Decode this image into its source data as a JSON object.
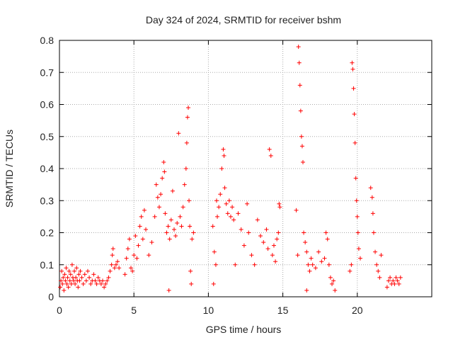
{
  "chart_data": {
    "type": "scatter",
    "title": "Day 324 of 2024, SRMTID for receiver bshm",
    "xlabel": "GPS time / hours",
    "ylabel": "SRMTID / TECUs",
    "xlim": [
      0,
      25
    ],
    "ylim": [
      0,
      0.8
    ],
    "xticks": [
      0,
      5,
      10,
      15,
      20
    ],
    "xtick_labels": [
      "0",
      "5",
      "10",
      "15",
      "20"
    ],
    "yticks": [
      0,
      0.1,
      0.2,
      0.3,
      0.4,
      0.5,
      0.6,
      0.7,
      0.8
    ],
    "ytick_labels": [
      "0",
      "0.1",
      "0.2",
      "0.3",
      "0.4",
      "0.5",
      "0.6",
      "0.7",
      "0.8"
    ],
    "grid": true,
    "marker": "+",
    "color": "#ff0000",
    "series": [
      {
        "name": "SRMTID",
        "points": [
          [
            0.05,
            0.03
          ],
          [
            0.1,
            0.05
          ],
          [
            0.15,
            0.08
          ],
          [
            0.2,
            0.04
          ],
          [
            0.25,
            0.06
          ],
          [
            0.3,
            0.02
          ],
          [
            0.35,
            0.07
          ],
          [
            0.4,
            0.05
          ],
          [
            0.45,
            0.09
          ],
          [
            0.5,
            0.04
          ],
          [
            0.55,
            0.06
          ],
          [
            0.6,
            0.03
          ],
          [
            0.65,
            0.08
          ],
          [
            0.7,
            0.05
          ],
          [
            0.75,
            0.07
          ],
          [
            0.8,
            0.04
          ],
          [
            0.85,
            0.1
          ],
          [
            0.9,
            0.06
          ],
          [
            0.95,
            0.05
          ],
          [
            1.0,
            0.08
          ],
          [
            1.05,
            0.04
          ],
          [
            1.1,
            0.06
          ],
          [
            1.15,
            0.09
          ],
          [
            1.2,
            0.05
          ],
          [
            1.25,
            0.03
          ],
          [
            1.3,
            0.07
          ],
          [
            1.35,
            0.05
          ],
          [
            1.4,
            0.08
          ],
          [
            1.5,
            0.06
          ],
          [
            1.6,
            0.04
          ],
          [
            1.7,
            0.07
          ],
          [
            1.8,
            0.05
          ],
          [
            1.9,
            0.08
          ],
          [
            2.0,
            0.06
          ],
          [
            2.1,
            0.04
          ],
          [
            2.2,
            0.05
          ],
          [
            2.3,
            0.07
          ],
          [
            2.4,
            0.05
          ],
          [
            2.5,
            0.04
          ],
          [
            2.6,
            0.06
          ],
          [
            2.7,
            0.05
          ],
          [
            2.8,
            0.04
          ],
          [
            2.9,
            0.05
          ],
          [
            3.0,
            0.03
          ],
          [
            3.1,
            0.04
          ],
          [
            3.2,
            0.05
          ],
          [
            3.3,
            0.06
          ],
          [
            3.4,
            0.08
          ],
          [
            3.5,
            0.1
          ],
          [
            3.55,
            0.13
          ],
          [
            3.6,
            0.15
          ],
          [
            3.7,
            0.09
          ],
          [
            3.8,
            0.1
          ],
          [
            3.9,
            0.11
          ],
          [
            4.0,
            0.09
          ],
          [
            4.4,
            0.07
          ],
          [
            4.5,
            0.12
          ],
          [
            4.6,
            0.15
          ],
          [
            4.7,
            0.18
          ],
          [
            4.8,
            0.09
          ],
          [
            4.9,
            0.08
          ],
          [
            5.0,
            0.13
          ],
          [
            5.1,
            0.19
          ],
          [
            5.2,
            0.12
          ],
          [
            5.3,
            0.16
          ],
          [
            5.4,
            0.22
          ],
          [
            5.5,
            0.25
          ],
          [
            5.6,
            0.18
          ],
          [
            5.7,
            0.27
          ],
          [
            5.8,
            0.21
          ],
          [
            6.0,
            0.13
          ],
          [
            6.2,
            0.17
          ],
          [
            6.4,
            0.25
          ],
          [
            6.5,
            0.35
          ],
          [
            6.6,
            0.31
          ],
          [
            6.7,
            0.28
          ],
          [
            6.8,
            0.32
          ],
          [
            6.9,
            0.37
          ],
          [
            7.0,
            0.42
          ],
          [
            7.05,
            0.39
          ],
          [
            7.1,
            0.26
          ],
          [
            7.2,
            0.2
          ],
          [
            7.3,
            0.22
          ],
          [
            7.4,
            0.18
          ],
          [
            7.5,
            0.24
          ],
          [
            7.6,
            0.33
          ],
          [
            7.7,
            0.21
          ],
          [
            7.8,
            0.19
          ],
          [
            7.9,
            0.23
          ],
          [
            8.0,
            0.51
          ],
          [
            8.1,
            0.25
          ],
          [
            8.2,
            0.22
          ],
          [
            8.3,
            0.28
          ],
          [
            8.4,
            0.35
          ],
          [
            8.5,
            0.4
          ],
          [
            8.55,
            0.48
          ],
          [
            8.6,
            0.56
          ],
          [
            8.65,
            0.59
          ],
          [
            8.7,
            0.3
          ],
          [
            8.75,
            0.22
          ],
          [
            8.8,
            0.08
          ],
          [
            8.85,
            0.04
          ],
          [
            8.9,
            0.18
          ],
          [
            7.35,
            0.02
          ],
          [
            9.0,
            0.2
          ],
          [
            10.3,
            0.22
          ],
          [
            10.4,
            0.14
          ],
          [
            10.5,
            0.1
          ],
          [
            10.55,
            0.3
          ],
          [
            10.6,
            0.25
          ],
          [
            10.7,
            0.28
          ],
          [
            10.8,
            0.32
          ],
          [
            10.9,
            0.4
          ],
          [
            11.0,
            0.46
          ],
          [
            11.05,
            0.44
          ],
          [
            11.1,
            0.34
          ],
          [
            11.2,
            0.29
          ],
          [
            11.3,
            0.26
          ],
          [
            11.4,
            0.3
          ],
          [
            11.5,
            0.25
          ],
          [
            11.6,
            0.28
          ],
          [
            11.7,
            0.24
          ],
          [
            11.8,
            0.1
          ],
          [
            10.35,
            0.04
          ],
          [
            12.0,
            0.26
          ],
          [
            12.2,
            0.21
          ],
          [
            12.4,
            0.16
          ],
          [
            12.6,
            0.29
          ],
          [
            12.7,
            0.2
          ],
          [
            12.9,
            0.13
          ],
          [
            13.1,
            0.1
          ],
          [
            13.3,
            0.24
          ],
          [
            13.5,
            0.19
          ],
          [
            13.7,
            0.17
          ],
          [
            13.9,
            0.21
          ],
          [
            14.0,
            0.15
          ],
          [
            14.1,
            0.46
          ],
          [
            14.2,
            0.44
          ],
          [
            14.3,
            0.13
          ],
          [
            14.4,
            0.16
          ],
          [
            14.5,
            0.11
          ],
          [
            14.6,
            0.18
          ],
          [
            14.7,
            0.2
          ],
          [
            14.75,
            0.29
          ],
          [
            14.8,
            0.28
          ],
          [
            15.9,
            0.27
          ],
          [
            16.0,
            0.13
          ],
          [
            16.05,
            0.78
          ],
          [
            16.1,
            0.73
          ],
          [
            16.15,
            0.66
          ],
          [
            16.2,
            0.58
          ],
          [
            16.25,
            0.5
          ],
          [
            16.3,
            0.47
          ],
          [
            16.35,
            0.42
          ],
          [
            16.4,
            0.2
          ],
          [
            16.5,
            0.17
          ],
          [
            16.6,
            0.14
          ],
          [
            16.7,
            0.1
          ],
          [
            16.8,
            0.08
          ],
          [
            16.9,
            0.12
          ],
          [
            17.0,
            0.1
          ],
          [
            17.2,
            0.09
          ],
          [
            17.4,
            0.14
          ],
          [
            17.6,
            0.11
          ],
          [
            17.8,
            0.12
          ],
          [
            17.9,
            0.2
          ],
          [
            18.0,
            0.18
          ],
          [
            18.1,
            0.1
          ],
          [
            18.2,
            0.06
          ],
          [
            18.3,
            0.04
          ],
          [
            18.4,
            0.05
          ],
          [
            18.5,
            0.02
          ],
          [
            16.6,
            0.02
          ],
          [
            19.5,
            0.08
          ],
          [
            19.6,
            0.1
          ],
          [
            19.65,
            0.73
          ],
          [
            19.7,
            0.71
          ],
          [
            19.75,
            0.65
          ],
          [
            19.8,
            0.57
          ],
          [
            19.85,
            0.48
          ],
          [
            19.9,
            0.37
          ],
          [
            19.95,
            0.3
          ],
          [
            20.0,
            0.25
          ],
          [
            20.05,
            0.2
          ],
          [
            20.1,
            0.15
          ],
          [
            20.2,
            0.12
          ],
          [
            20.9,
            0.34
          ],
          [
            21.0,
            0.31
          ],
          [
            21.05,
            0.26
          ],
          [
            21.1,
            0.2
          ],
          [
            21.2,
            0.14
          ],
          [
            21.3,
            0.1
          ],
          [
            21.4,
            0.08
          ],
          [
            21.5,
            0.06
          ],
          [
            21.6,
            0.13
          ],
          [
            22.0,
            0.03
          ],
          [
            22.1,
            0.05
          ],
          [
            22.2,
            0.06
          ],
          [
            22.3,
            0.04
          ],
          [
            22.4,
            0.05
          ],
          [
            22.5,
            0.04
          ],
          [
            22.6,
            0.06
          ],
          [
            22.7,
            0.05
          ],
          [
            22.8,
            0.04
          ],
          [
            22.9,
            0.06
          ]
        ]
      }
    ]
  }
}
